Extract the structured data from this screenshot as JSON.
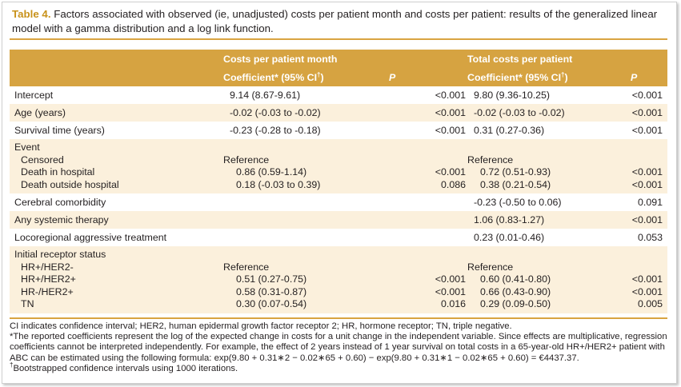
{
  "caption": {
    "label": "Table 4.",
    "text": "Factors associated with observed (ie, unadjusted) costs per patient month and costs per patient: results of the generalized linear model with a gamma distribution and a log link function."
  },
  "header": {
    "group1": "Costs per patient month",
    "group2": "Total costs per patient",
    "coef": "Coefficient* (95% CI",
    "coef_sup": "†",
    "coef_close": ")",
    "p": "P"
  },
  "rows": {
    "intercept": {
      "label": "Intercept",
      "c1": "9.14 (8.67-9.61)",
      "p1": "<0.001",
      "c2": "9.80 (9.36-10.25)",
      "p2": "<0.001"
    },
    "age": {
      "label": "Age (years)",
      "c1": "-0.02 (-0.03 to -0.02)",
      "p1": "<0.001",
      "c2": "-0.02 (-0.03 to -0.02)",
      "p2": "<0.001"
    },
    "survival": {
      "label": "Survival time (years)",
      "c1": "-0.23 (-0.28 to -0.18)",
      "p1": "<0.001",
      "c2": "0.31 (0.27-0.36)",
      "p2": "<0.001"
    },
    "event": {
      "label": "Event",
      "censored": {
        "label": "Censored",
        "c1": "Reference",
        "c2": "Reference"
      },
      "death_hosp": {
        "label": "Death in hospital",
        "c1": "0.86 (0.59-1.14)",
        "p1": "<0.001",
        "c2": "0.72 (0.51-0.93)",
        "p2": "<0.001"
      },
      "death_out": {
        "label": "Death outside hospital",
        "c1": "0.18 (-0.03 to 0.39)",
        "p1": "0.086",
        "c2": "0.38 (0.21-0.54)",
        "p2": "<0.001"
      }
    },
    "cerebral": {
      "label": "Cerebral comorbidity",
      "c2": "-0.23 (-0.50 to 0.06)",
      "p2": "0.091"
    },
    "systemic": {
      "label": "Any systemic therapy",
      "c2": "1.06 (0.83-1.27)",
      "p2": "<0.001"
    },
    "locoregional": {
      "label": "Locoregional aggressive treatment",
      "c2": "0.23 (0.01-0.46)",
      "p2": "0.053"
    },
    "receptor": {
      "label": "Initial receptor status",
      "hrpos_her2neg": {
        "label": "HR+/HER2-",
        "c1": "Reference",
        "c2": "Reference"
      },
      "hrpos_her2pos": {
        "label": "HR+/HER2+",
        "c1": "0.51 (0.27-0.75)",
        "p1": "<0.001",
        "c2": "0.60 (0.41-0.80)",
        "p2": "<0.001"
      },
      "hrneg_her2pos": {
        "label": "HR-/HER2+",
        "c1": "0.58 (0.31-0.87)",
        "p1": "<0.001",
        "c2": "0.66 (0.43-0.90)",
        "p2": "<0.001"
      },
      "tn": {
        "label": "TN",
        "c1": "0.30 (0.07-0.54)",
        "p1": "0.016",
        "c2": "0.29 (0.09-0.50)",
        "p2": "0.005"
      }
    }
  },
  "footnotes": {
    "f1": "CI indicates confidence interval; HER2, human epidermal growth factor receptor 2; HR, hormone receptor; TN, triple negative.",
    "f2": "*The reported coefficients represent the log of the expected change in costs for a unit change in the independent variable. Since effects are multiplicative, regression coefficients cannot be interpreted independently. For example, the effect of 2 years instead of 1 year survival on total costs in a 65-year-old HR+/HER2+ patient with ABC can be estimated using the following formula: exp(9.80 + 0.31∗2 − 0.02∗65 + 0.60) − exp(9.80 + 0.31∗1 − 0.02∗65 + 0.60) = €4437.37.",
    "f3_sup": "†",
    "f3": "Bootstrapped confidence intervals using 1000 iterations."
  }
}
